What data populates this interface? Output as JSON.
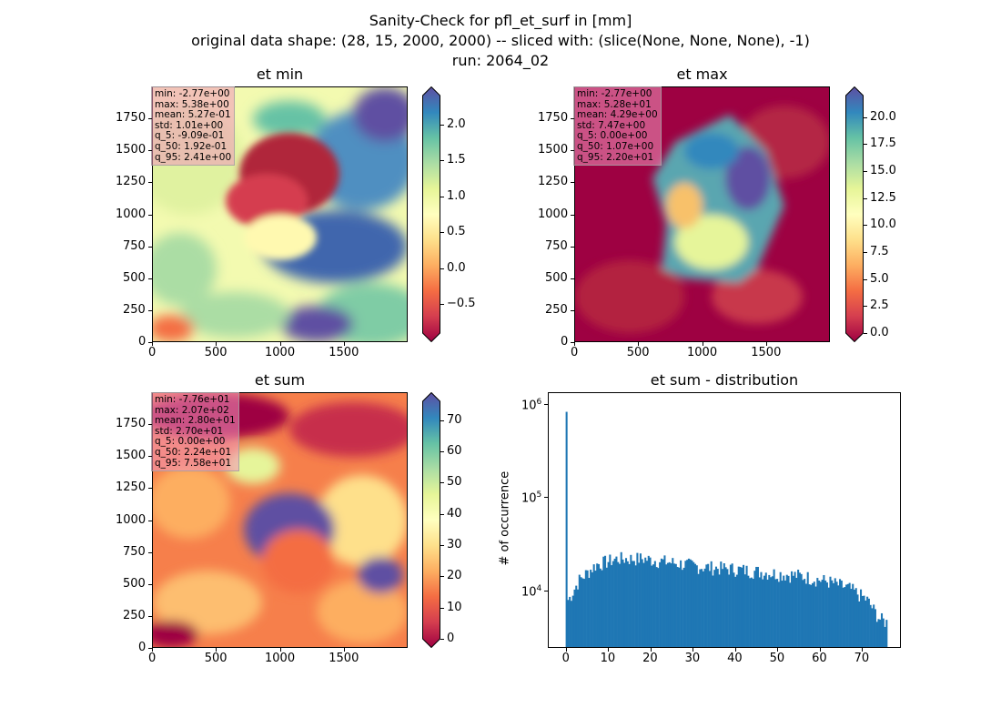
{
  "figure": {
    "title_lines": [
      "Sanity-Check for pfl_et_surf in [mm]",
      "original data shape: (28, 15, 2000, 2000) -- sliced with: (slice(None, None, None), -1)",
      "run: 2064_02"
    ]
  },
  "chart_data": [
    {
      "type": "heatmap",
      "title": "et min",
      "colormap": "Spectral",
      "xticks": [
        "0",
        "500",
        "1000",
        "1500"
      ],
      "yticks": [
        "0",
        "250",
        "500",
        "750",
        "1000",
        "1250",
        "1500",
        "1750"
      ],
      "xlim": [
        0,
        2000
      ],
      "ylim": [
        0,
        2000
      ],
      "colorbar": {
        "range": [
          -0.9,
          2.4
        ],
        "ticks": [
          "−0.5",
          "0.0",
          "0.5",
          "1.0",
          "1.5",
          "2.0"
        ],
        "tick_values": [
          -0.5,
          0.0,
          0.5,
          1.0,
          1.5,
          2.0
        ],
        "extend": "both"
      },
      "stats": [
        "min: -2.77e+00",
        "max: 5.38e+00",
        "mean: 5.27e-01",
        "std: 1.01e+00",
        "q_5: -9.09e-01",
        "q_50: 1.92e-01",
        "q_95: 2.41e+00"
      ]
    },
    {
      "type": "heatmap",
      "title": "et max",
      "colormap": "Spectral",
      "xticks": [
        "0",
        "500",
        "1000",
        "1500"
      ],
      "yticks": [
        "0",
        "250",
        "500",
        "750",
        "1000",
        "1250",
        "1500",
        "1750"
      ],
      "xlim": [
        0,
        2000
      ],
      "ylim": [
        0,
        2000
      ],
      "colorbar": {
        "range": [
          0,
          22
        ],
        "ticks": [
          "0.0",
          "2.5",
          "5.0",
          "7.5",
          "10.0",
          "12.5",
          "15.0",
          "17.5",
          "20.0"
        ],
        "tick_values": [
          0,
          2.5,
          5,
          7.5,
          10,
          12.5,
          15,
          17.5,
          20
        ],
        "extend": "both"
      },
      "stats": [
        "min: -2.77e+00",
        "max: 5.28e+01",
        "mean: 4.29e+00",
        "std: 7.47e+00",
        "q_5: 0.00e+00",
        "q_50: 1.07e+00",
        "q_95: 2.20e+01"
      ]
    },
    {
      "type": "heatmap",
      "title": "et sum",
      "colormap": "Spectral",
      "xticks": [
        "0",
        "500",
        "1000",
        "1500"
      ],
      "yticks": [
        "0",
        "250",
        "500",
        "750",
        "1000",
        "1250",
        "1500",
        "1750"
      ],
      "xlim": [
        0,
        2000
      ],
      "ylim": [
        0,
        2000
      ],
      "colorbar": {
        "range": [
          0,
          76
        ],
        "ticks": [
          "0",
          "10",
          "20",
          "30",
          "40",
          "50",
          "60",
          "70"
        ],
        "tick_values": [
          0,
          10,
          20,
          30,
          40,
          50,
          60,
          70
        ],
        "extend": "both"
      },
      "stats": [
        "min: -7.76e+01",
        "max: 2.07e+02",
        "mean: 2.80e+01",
        "std: 2.70e+01",
        "q_5: 0.00e+00",
        "q_50: 2.24e+01",
        "q_95: 7.58e+01"
      ]
    },
    {
      "type": "bar",
      "subtype": "histogram",
      "title": "et sum - distribution",
      "ylabel": "# of occurrence",
      "yscale": "log",
      "xlim": [
        -4,
        79
      ],
      "ylim": [
        2500,
        1300000
      ],
      "xticks": [
        "0",
        "10",
        "20",
        "30",
        "40",
        "50",
        "60",
        "70"
      ],
      "xtick_values": [
        0,
        10,
        20,
        30,
        40,
        50,
        60,
        70
      ],
      "yticks": [
        "10",
        "10",
        "10"
      ],
      "ytick_exponents": [
        "4",
        "5",
        "6"
      ],
      "ytick_values": [
        10000,
        100000,
        1000000
      ],
      "color": "#1f77b4",
      "bin_start": 0,
      "bin_width": 0.38,
      "spike": {
        "x": 0,
        "count": 820000
      },
      "counts_trend": [
        {
          "x": 0.5,
          "count": 8000
        },
        {
          "x": 3,
          "count": 13000
        },
        {
          "x": 7,
          "count": 19000
        },
        {
          "x": 12,
          "count": 22000
        },
        {
          "x": 18,
          "count": 22000
        },
        {
          "x": 25,
          "count": 20000
        },
        {
          "x": 32,
          "count": 18000
        },
        {
          "x": 40,
          "count": 17000
        },
        {
          "x": 48,
          "count": 15500
        },
        {
          "x": 55,
          "count": 14500
        },
        {
          "x": 62,
          "count": 12500
        },
        {
          "x": 67,
          "count": 10500
        },
        {
          "x": 71,
          "count": 8000
        },
        {
          "x": 74,
          "count": 5000
        },
        {
          "x": 76,
          "count": 4500
        }
      ]
    }
  ]
}
